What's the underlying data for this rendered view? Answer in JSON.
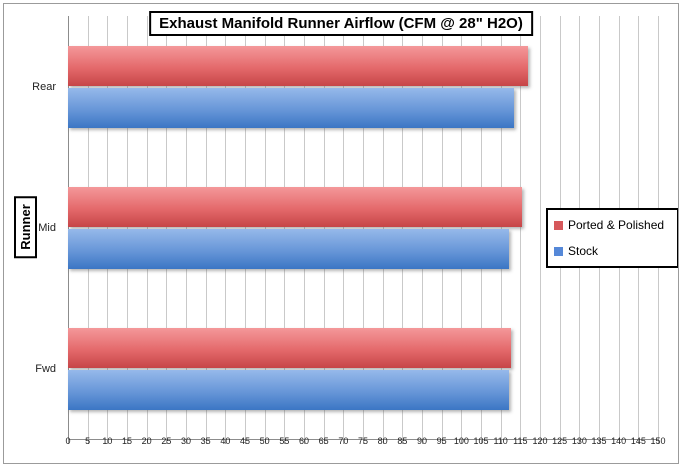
{
  "chart_data": {
    "type": "bar",
    "orientation": "horizontal",
    "title": "Exhaust Manifold Runner Airflow (CFM @ 28\" H2O)",
    "xlabel": "",
    "ylabel": "Runner",
    "categories": [
      "Rear",
      "Mid",
      "Fwd"
    ],
    "series": [
      {
        "name": "Ported & Polished",
        "values": [
          117,
          115.5,
          112.5
        ],
        "legend_swatch": "#d6585b"
      },
      {
        "name": "Stock",
        "values": [
          113.5,
          112,
          112
        ],
        "legend_swatch": "#5588d8"
      }
    ],
    "xlim": [
      0,
      150
    ],
    "tick_step": 5,
    "grid": true,
    "legend_position": "right",
    "colors": {
      "series_red_top": "#f4989a",
      "series_red_bottom": "#c64547",
      "series_blue_top": "#96b9ea",
      "series_blue_bottom": "#3b76c4",
      "gridline": "#c9c9c9",
      "axis_line": "#8c8c8c",
      "chart_border": "#9b9b9b"
    }
  }
}
